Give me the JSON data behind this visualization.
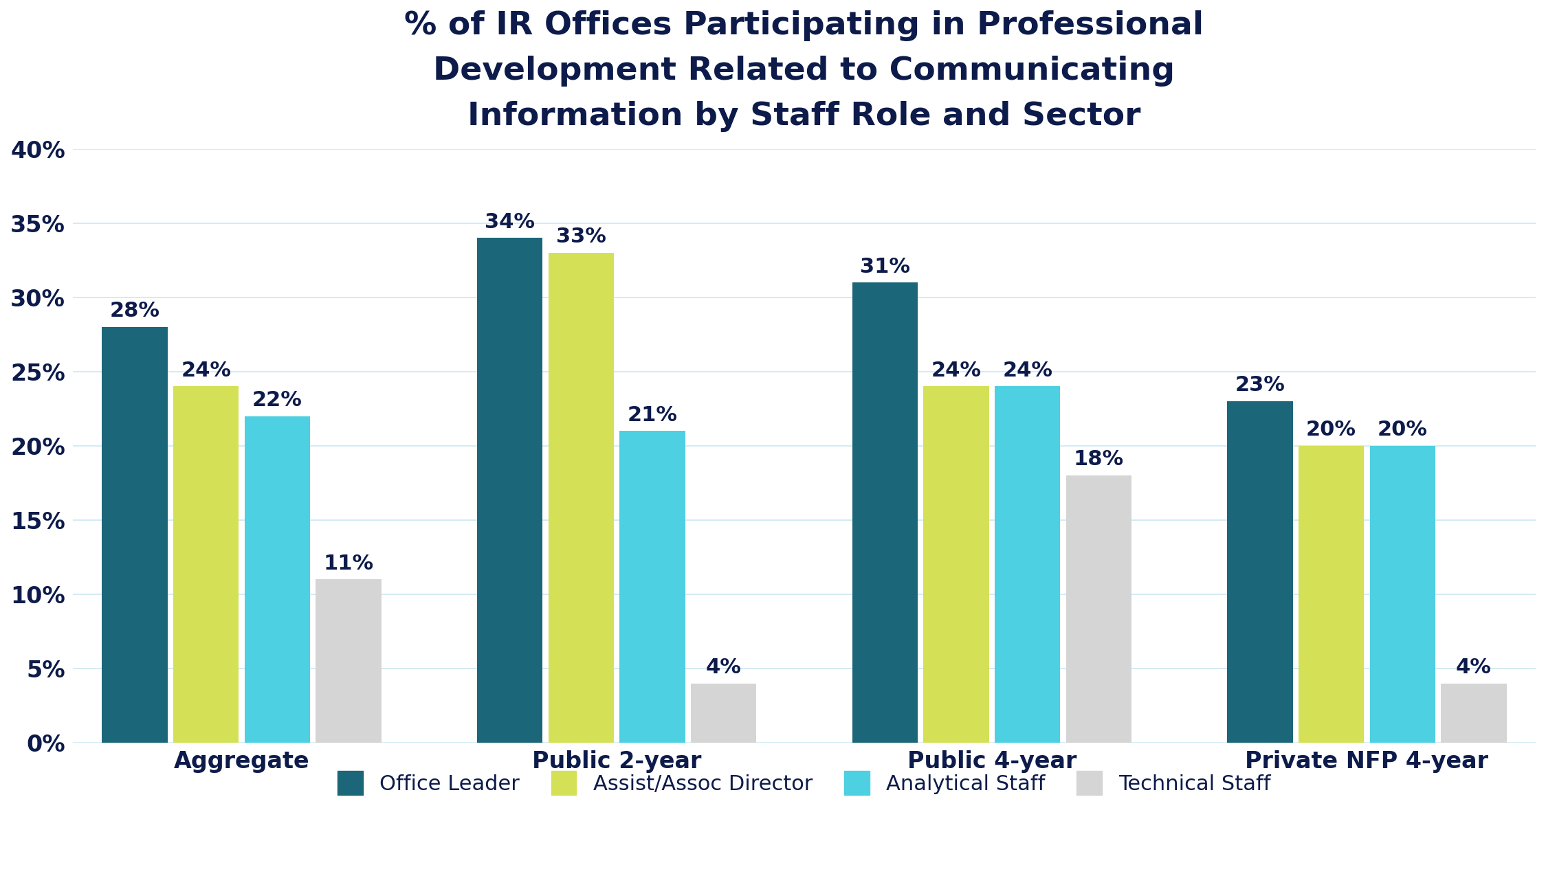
{
  "title": "% of IR Offices Participating in Professional\nDevelopment Related to Communicating\nInformation by Staff Role and Sector",
  "categories": [
    "Aggregate",
    "Public 2-year",
    "Public 4-year",
    "Private NFP 4-year"
  ],
  "series": [
    {
      "name": "Office Leader",
      "color": "#1b6678",
      "values": [
        28,
        34,
        31,
        23
      ]
    },
    {
      "name": "Assist/Assoc Director",
      "color": "#d4e157",
      "values": [
        24,
        33,
        24,
        20
      ]
    },
    {
      "name": "Analytical Staff",
      "color": "#4dd0e1",
      "values": [
        22,
        21,
        24,
        20
      ]
    },
    {
      "name": "Technical Staff",
      "color": "#d5d5d5",
      "values": [
        11,
        4,
        18,
        4
      ]
    }
  ],
  "ylim": [
    0,
    40
  ],
  "yticks": [
    0,
    5,
    10,
    15,
    20,
    25,
    30,
    35,
    40
  ],
  "ytick_labels": [
    "0%",
    "5%",
    "10%",
    "15%",
    "20%",
    "25%",
    "30%",
    "35%",
    "40%"
  ],
  "title_color": "#0d1b4b",
  "tick_color": "#0d1b4b",
  "background_color": "#ffffff",
  "grid_color": "#cce8f4",
  "bar_width": 0.19,
  "title_fontsize": 34,
  "tick_fontsize": 24,
  "legend_fontsize": 22,
  "value_fontsize": 22
}
